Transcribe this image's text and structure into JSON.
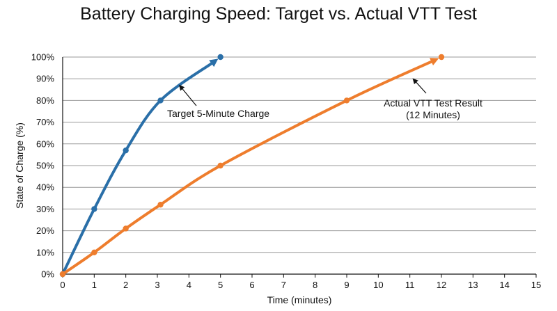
{
  "chart_data": {
    "type": "line",
    "title": "Battery Charging Speed: Target vs. Actual VTT Test",
    "xlabel": "Time (minutes)",
    "ylabel": "State of Charge (%)",
    "xlim": [
      0,
      15
    ],
    "ylim": [
      0,
      100
    ],
    "x_ticks": [
      "0",
      "1",
      "2",
      "3",
      "4",
      "5",
      "6",
      "7",
      "8",
      "9",
      "10",
      "11",
      "12",
      "13",
      "14",
      "15"
    ],
    "y_ticks": [
      "0%",
      "10%",
      "20%",
      "30%",
      "40%",
      "50%",
      "60%",
      "70%",
      "80%",
      "90%",
      "100%"
    ],
    "grid": "horizontal",
    "series": [
      {
        "color": "#2a6fa8",
        "points": [
          [
            0,
            0
          ],
          [
            1,
            30
          ],
          [
            2,
            57
          ],
          [
            3.1,
            80
          ],
          [
            5,
            100
          ]
        ]
      },
      {
        "color": "#ee7d2d",
        "points": [
          [
            0,
            0
          ],
          [
            1,
            10
          ],
          [
            2,
            21
          ],
          [
            3.1,
            32
          ],
          [
            5,
            50
          ],
          [
            9,
            80
          ],
          [
            12,
            100
          ]
        ]
      }
    ],
    "annotations": [
      {
        "lines": [
          "Target 5-Minute Charge"
        ],
        "points_to": [
          3.7,
          87
        ]
      },
      {
        "lines": [
          "Actual VTT Test Result",
          "(12 Minutes)"
        ],
        "points_to": [
          11.1,
          90
        ]
      }
    ]
  }
}
